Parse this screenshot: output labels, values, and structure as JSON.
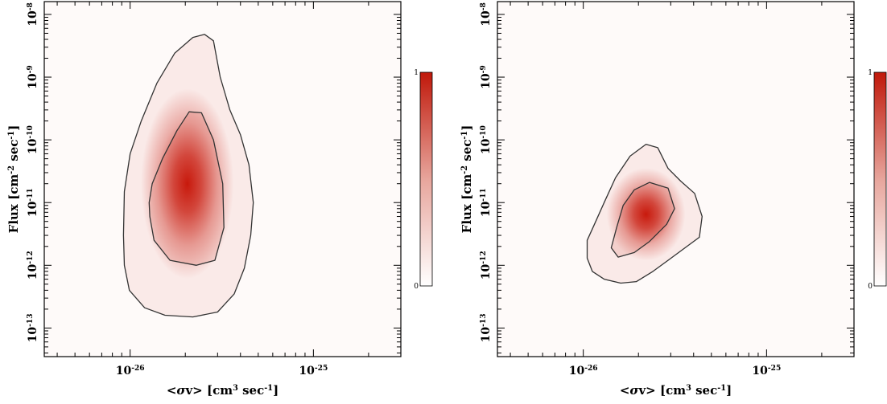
{
  "chart_data": [
    {
      "type": "heatmap",
      "title": "",
      "xlabel": "<σv> [cm³ sec⁻¹]",
      "ylabel": "Flux [cm⁻² sec⁻¹]",
      "x_scale": "log",
      "y_scale": "log",
      "xlim": [
        3.4e-27,
        3e-25
      ],
      "ylim": [
        3.5e-14,
        1.6e-08
      ],
      "x_ticks": [
        {
          "value": 1e-26,
          "base": "10",
          "exp": "-26"
        },
        {
          "value": 1e-25,
          "base": "10",
          "exp": "-25"
        }
      ],
      "y_ticks": [
        {
          "value": 1e-13,
          "base": "10",
          "exp": "-13"
        },
        {
          "value": 1e-12,
          "base": "10",
          "exp": "-12"
        },
        {
          "value": 1e-11,
          "base": "10",
          "exp": "-11"
        },
        {
          "value": 1e-10,
          "base": "10",
          "exp": "-10"
        },
        {
          "value": 1e-09,
          "base": "10",
          "exp": "-9"
        },
        {
          "value": 1e-08,
          "base": "10",
          "exp": "-8"
        }
      ],
      "peak": {
        "x": 2.05e-26,
        "y": 2e-11
      },
      "contours": [
        {
          "name": "inner",
          "points": [
            [
              1.28e-26,
              6e-12
            ],
            [
              1.35e-26,
              2.5e-12
            ],
            [
              1.65e-26,
              1.2e-12
            ],
            [
              2.3e-26,
              1e-12
            ],
            [
              2.9e-26,
              1.2e-12
            ],
            [
              3.25e-26,
              4e-12
            ],
            [
              3.2e-26,
              2e-11
            ],
            [
              2.85e-26,
              1e-10
            ],
            [
              2.45e-26,
              2.7e-10
            ],
            [
              2.1e-26,
              2.8e-10
            ],
            [
              1.8e-26,
              1.4e-10
            ],
            [
              1.5e-26,
              5e-11
            ],
            [
              1.32e-26,
              2e-11
            ],
            [
              1.27e-26,
              1e-11
            ]
          ]
        },
        {
          "name": "outer",
          "points": [
            [
              9.2e-27,
              3e-12
            ],
            [
              9.3e-27,
              1e-12
            ],
            [
              9.9e-27,
              4e-13
            ],
            [
              1.2e-26,
              2.1e-13
            ],
            [
              1.55e-26,
              1.6e-13
            ],
            [
              2.2e-26,
              1.5e-13
            ],
            [
              3e-26,
              1.8e-13
            ],
            [
              3.7e-26,
              3.5e-13
            ],
            [
              4.2e-26,
              9e-13
            ],
            [
              4.55e-26,
              3e-12
            ],
            [
              4.7e-26,
              1e-11
            ],
            [
              4.45e-26,
              4e-11
            ],
            [
              4e-26,
              1.2e-10
            ],
            [
              3.5e-26,
              3e-10
            ],
            [
              3.1e-26,
              1e-09
            ],
            [
              2.85e-26,
              3.8e-09
            ],
            [
              2.55e-26,
              4.8e-09
            ],
            [
              2.2e-26,
              4.3e-09
            ],
            [
              1.75e-26,
              2.4e-09
            ],
            [
              1.4e-26,
              8e-10
            ],
            [
              1.15e-26,
              2e-10
            ],
            [
              1e-26,
              6e-11
            ],
            [
              9.3e-27,
              1.5e-11
            ]
          ]
        }
      ],
      "colorbar": {
        "min": 0,
        "max": 1,
        "min_label": "0",
        "max_label": "1",
        "color_low": "#ffffff",
        "color_high": "#c0180a"
      },
      "colors": {
        "contour": "#333333",
        "peak": "#c8190c",
        "background_tint": "#fbecea"
      }
    },
    {
      "type": "heatmap",
      "title": "",
      "xlabel": "<σv> [cm³ sec⁻¹]",
      "ylabel": "Flux [cm⁻² sec⁻¹]",
      "x_scale": "log",
      "y_scale": "log",
      "xlim": [
        3.4e-27,
        3e-25
      ],
      "ylim": [
        3.5e-14,
        1.6e-08
      ],
      "x_ticks": [
        {
          "value": 1e-26,
          "base": "10",
          "exp": "-26"
        },
        {
          "value": 1e-25,
          "base": "10",
          "exp": "-25"
        }
      ],
      "y_ticks": [
        {
          "value": 1e-13,
          "base": "10",
          "exp": "-13"
        },
        {
          "value": 1e-12,
          "base": "10",
          "exp": "-12"
        },
        {
          "value": 1e-11,
          "base": "10",
          "exp": "-11"
        },
        {
          "value": 1e-10,
          "base": "10",
          "exp": "-10"
        },
        {
          "value": 1e-09,
          "base": "10",
          "exp": "-9"
        },
        {
          "value": 1e-08,
          "base": "10",
          "exp": "-8"
        }
      ],
      "peak": {
        "x": 2.2e-26,
        "y": 6.5e-12
      },
      "contours": [
        {
          "name": "inner",
          "points": [
            [
              1.42e-26,
              1.9e-12
            ],
            [
              1.55e-26,
              1.35e-12
            ],
            [
              1.9e-26,
              1.6e-12
            ],
            [
              2.3e-26,
              2.4e-12
            ],
            [
              2.85e-26,
              4.5e-12
            ],
            [
              3.15e-26,
              8e-12
            ],
            [
              2.9e-26,
              1.7e-11
            ],
            [
              2.3e-26,
              2.1e-11
            ],
            [
              1.9e-26,
              1.6e-11
            ],
            [
              1.65e-26,
              9e-12
            ],
            [
              1.52e-26,
              4e-12
            ]
          ]
        },
        {
          "name": "outer",
          "points": [
            [
              1.05e-26,
              1.3e-12
            ],
            [
              1.05e-26,
              2.5e-12
            ],
            [
              1.15e-26,
              4.5e-12
            ],
            [
              1.3e-26,
              1e-11
            ],
            [
              1.5e-26,
              2.5e-11
            ],
            [
              1.8e-26,
              5.5e-11
            ],
            [
              2.2e-26,
              8.5e-11
            ],
            [
              2.55e-26,
              7.5e-11
            ],
            [
              2.9e-26,
              3.5e-11
            ],
            [
              3.4e-26,
              2.2e-11
            ],
            [
              4.05e-26,
              1.4e-11
            ],
            [
              4.45e-26,
              6e-12
            ],
            [
              4.3e-26,
              2.8e-12
            ],
            [
              3.5e-26,
              1.8e-12
            ],
            [
              2.9e-26,
              1.2e-12
            ],
            [
              2.4e-26,
              8e-13
            ],
            [
              1.95e-26,
              5.5e-13
            ],
            [
              1.6e-26,
              5.2e-13
            ],
            [
              1.3e-26,
              6e-13
            ],
            [
              1.12e-26,
              8e-13
            ]
          ]
        }
      ],
      "colorbar": {
        "min": 0,
        "max": 1,
        "min_label": "0",
        "max_label": "1",
        "color_low": "#ffffff",
        "color_high": "#c0180a"
      },
      "colors": {
        "contour": "#333333",
        "peak": "#c8190c",
        "background_tint": "#fbecea"
      }
    }
  ]
}
